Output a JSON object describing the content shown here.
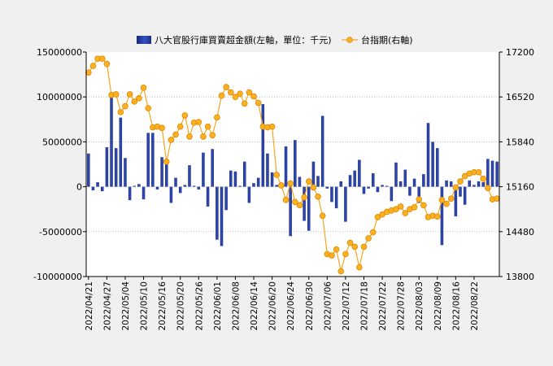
{
  "chart_data": {
    "type": "bar+line",
    "series": [
      {
        "name": "八大官股行庫買賣超金額(左軸，單位：千元)",
        "axis": "left",
        "type": "bar",
        "color": "#2a3f9a",
        "values": [
          3700000,
          -400000,
          500000,
          -500000,
          4400000,
          10000000,
          4300000,
          7700000,
          3200000,
          -1500000,
          100000,
          300000,
          -1400000,
          6000000,
          6000000,
          -300000,
          3300000,
          3100000,
          -1800000,
          1000000,
          -700000,
          200000,
          2400000,
          100000,
          -300000,
          3800000,
          -2200000,
          4200000,
          -5900000,
          -6600000,
          -2600000,
          1800000,
          1700000,
          100000,
          2800000,
          -1800000,
          400000,
          1000000,
          9200000,
          3700000,
          1600000,
          200000,
          -100000,
          4500000,
          -5500000,
          5200000,
          1100000,
          -3800000,
          -4900000,
          2800000,
          1200000,
          7900000,
          -200000,
          -1700000,
          -2400000,
          600000,
          -3900000,
          1300000,
          1800000,
          3000000,
          -800000,
          -200000,
          1500000,
          -600000,
          200000,
          100000,
          -1600000,
          2700000,
          600000,
          1900000,
          -1000000,
          900000,
          -1800000,
          1400000,
          7100000,
          5000000,
          4300000,
          -6500000,
          700000,
          600000,
          -3300000,
          -1100000,
          -2000000,
          700000,
          200000,
          600000,
          500000,
          3100000,
          2900000,
          2800000
        ]
      },
      {
        "name": "台指期(右軸)",
        "axis": "right",
        "type": "line",
        "color": "#f5a623",
        "values": [
          16890,
          16990,
          17100,
          17100,
          17020,
          16550,
          16560,
          16290,
          16380,
          16560,
          16450,
          16500,
          16660,
          16350,
          16060,
          16070,
          16050,
          15540,
          15870,
          15950,
          16070,
          16240,
          15920,
          16130,
          16140,
          15920,
          16070,
          15940,
          16210,
          16540,
          16670,
          16590,
          16520,
          16570,
          16420,
          16590,
          16530,
          16430,
          16070,
          16060,
          16070,
          15340,
          15180,
          14960,
          15210,
          14930,
          14880,
          15000,
          15240,
          15150,
          15010,
          14720,
          14140,
          14120,
          14210,
          13880,
          14140,
          14310,
          14250,
          13940,
          14250,
          14380,
          14470,
          14700,
          14740,
          14780,
          14800,
          14820,
          14860,
          14760,
          14820,
          14850,
          14970,
          14880,
          14700,
          14720,
          14710,
          14960,
          14900,
          14980,
          15150,
          15240,
          15320,
          15360,
          15380,
          15380,
          15280,
          15140,
          14970,
          14980
        ]
      }
    ],
    "x_tick_labels": [
      "2022/04/21",
      "2022/04/27",
      "2022/05/04",
      "2022/05/10",
      "2022/05/16",
      "2022/05/20",
      "2022/05/26",
      "2022/06/01",
      "2022/06/08",
      "2022/06/14",
      "2022/06/20",
      "2022/06/24",
      "2022/06/30",
      "2022/07/06",
      "2022/07/12",
      "2022/07/18",
      "2022/07/22",
      "2022/07/28",
      "2022/08/03",
      "2022/08/09",
      "2022/08/16",
      "2022/08/22"
    ],
    "x_tick_every": 4,
    "y_left": {
      "min": -10000000,
      "max": 15000000,
      "ticks": [
        -10000000,
        -5000000,
        0,
        5000000,
        10000000,
        15000000
      ]
    },
    "y_right": {
      "min": 13800,
      "max": 17200,
      "ticks": [
        13800,
        14480,
        15160,
        15840,
        16520,
        17200
      ]
    },
    "grid": true,
    "legend_position": "top-center"
  }
}
